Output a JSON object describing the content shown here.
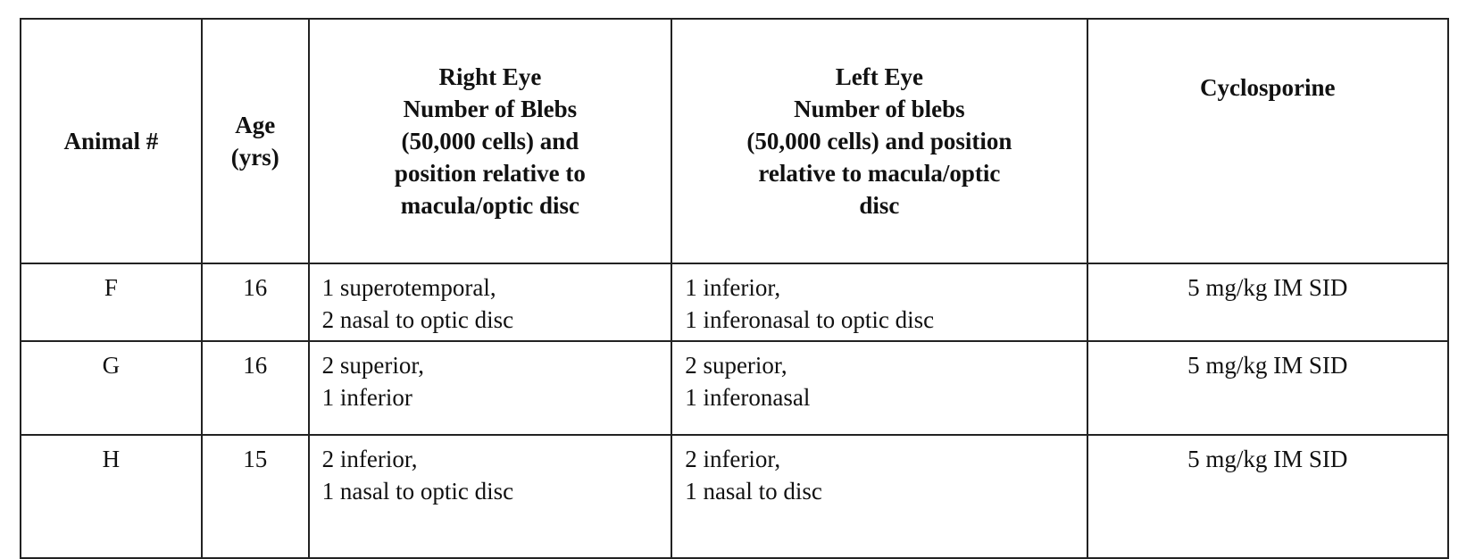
{
  "table": {
    "headers": [
      [
        "Animal #"
      ],
      [
        "Age",
        "(yrs)"
      ],
      [
        "Right Eye",
        "Number of Blebs",
        "(50,000 cells) and",
        "position relative to",
        "macula/optic disc"
      ],
      [
        "Left Eye",
        "Number of blebs",
        "(50,000 cells) and position",
        "relative to macula/optic",
        "disc"
      ],
      [
        "Cyclosporine"
      ]
    ],
    "rows": [
      {
        "animal": "F",
        "age": "16",
        "right": [
          "1 superotemporal,",
          "2 nasal to optic disc"
        ],
        "left": [
          "1 inferior,",
          "1 inferonasal to optic disc"
        ],
        "cyclosporine": "5 mg/kg IM SID"
      },
      {
        "animal": "G",
        "age": "16",
        "right": [
          "2 superior,",
          "1 inferior"
        ],
        "left": [
          "2 superior,",
          "1 inferonasal"
        ],
        "cyclosporine": "5 mg/kg IM SID"
      },
      {
        "animal": "H",
        "age": "15",
        "right": [
          "2 inferior,",
          "1 nasal to optic disc"
        ],
        "left": [
          "2 inferior,",
          "1 nasal to disc"
        ],
        "cyclosporine": "5 mg/kg IM SID"
      }
    ]
  }
}
